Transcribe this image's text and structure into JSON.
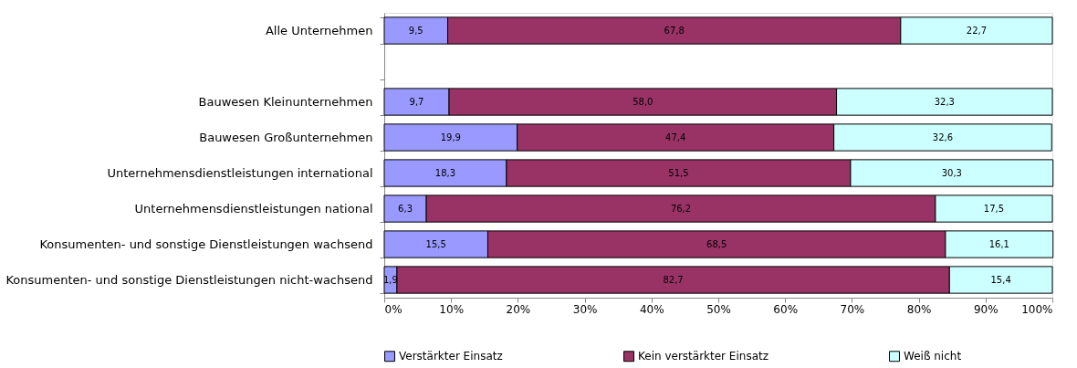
{
  "chart_data": {
    "type": "bar",
    "orientation": "horizontal",
    "stacked": true,
    "categories": [
      "Alle Unternehmen",
      null,
      "Bauwesen Kleinunternehmen",
      "Bauwesen Großunternehmen",
      "Unternehmensdienstleistungen international",
      "Unternehmensdienstleistungen national",
      "Konsumenten- und sonstige Dienstleistungen wachsend",
      "Konsumenten- und sonstige Dienstleistungen nicht-wachsend"
    ],
    "series": [
      {
        "name": "Verstärkter Einsatz",
        "color": "#9999ff",
        "values": [
          9.5,
          null,
          9.7,
          19.9,
          18.3,
          6.3,
          15.5,
          1.9
        ],
        "value_labels": [
          "9,5",
          null,
          "9,7",
          "19,9",
          "18,3",
          "6,3",
          "15,5",
          "1,9"
        ]
      },
      {
        "name": "Kein verstärkter Einsatz",
        "color": "#993366",
        "values": [
          67.8,
          null,
          58.0,
          47.4,
          51.5,
          76.2,
          68.5,
          82.7
        ],
        "value_labels": [
          "67,8",
          null,
          "58,0",
          "47,4",
          "51,5",
          "76,2",
          "68,5",
          "82,7"
        ]
      },
      {
        "name": "Weiß nicht",
        "color": "#ccffff",
        "values": [
          22.7,
          null,
          32.3,
          32.6,
          30.3,
          17.5,
          16.1,
          15.4
        ],
        "value_labels": [
          "22,7",
          null,
          "32,3",
          "32,6",
          "30,3",
          "17,5",
          "16,1",
          "15,4"
        ]
      }
    ],
    "xlim": [
      0,
      100
    ],
    "xticks": [
      {
        "value": 0,
        "label": "0%"
      },
      {
        "value": 10,
        "label": "10%"
      },
      {
        "value": 20,
        "label": "20%"
      },
      {
        "value": 30,
        "label": "30%"
      },
      {
        "value": 40,
        "label": "40%"
      },
      {
        "value": 50,
        "label": "50%"
      },
      {
        "value": 60,
        "label": "60%"
      },
      {
        "value": 70,
        "label": "70%"
      },
      {
        "value": 80,
        "label": "80%"
      },
      {
        "value": 90,
        "label": "90%"
      },
      {
        "value": 100,
        "label": "100%"
      }
    ],
    "grid": false,
    "legend": "bottom"
  }
}
